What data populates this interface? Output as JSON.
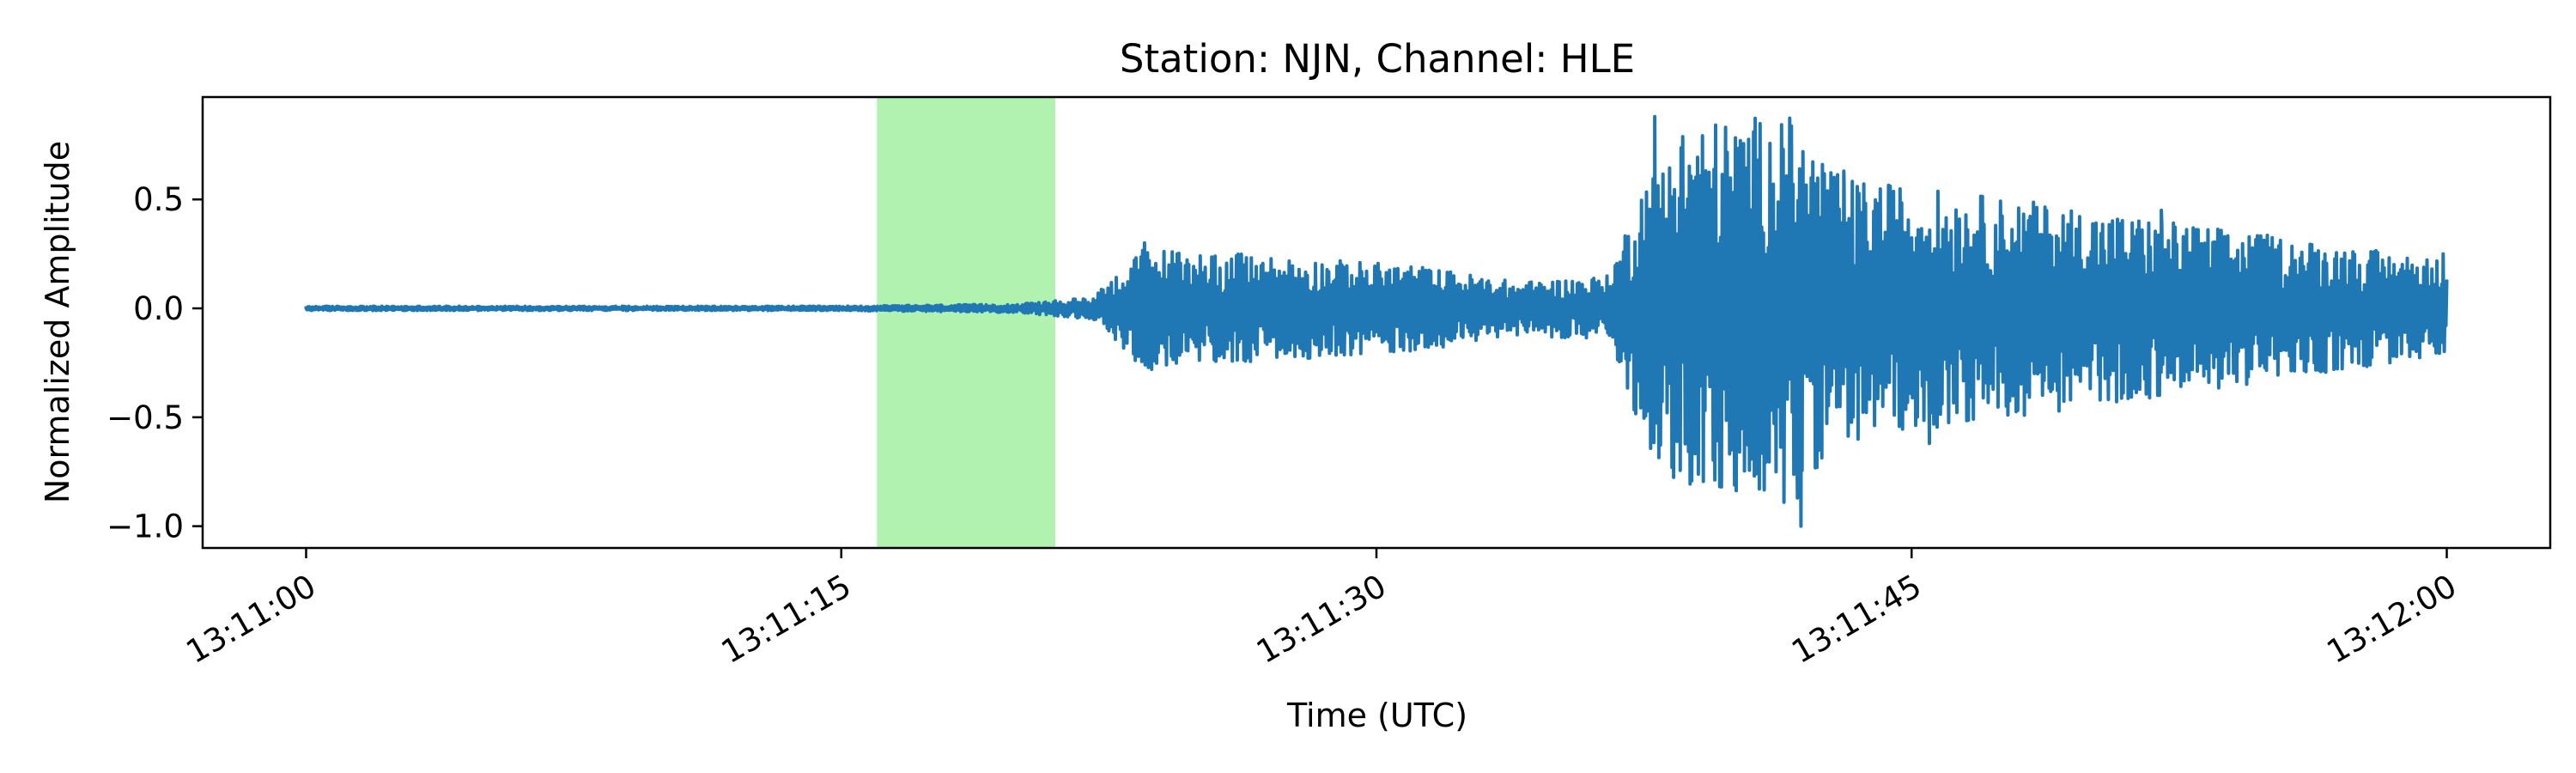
{
  "chart_data": {
    "type": "line",
    "title": "Station: NJN, Channel: HLE",
    "xlabel": "Time (UTC)",
    "ylabel": "Normalized Amplitude",
    "x_unit": "seconds after 13:11:00 UTC",
    "xlim": [
      -2.9,
      62.9
    ],
    "ylim": [
      -1.1,
      0.97
    ],
    "x_ticks": [
      {
        "value": 0,
        "label": "13:11:00"
      },
      {
        "value": 15,
        "label": "13:11:15"
      },
      {
        "value": 30,
        "label": "13:11:30"
      },
      {
        "value": 45,
        "label": "13:11:45"
      },
      {
        "value": 60,
        "label": "13:12:00"
      }
    ],
    "y_ticks": [
      {
        "value": 0.5,
        "label": "0.5"
      },
      {
        "value": 0.0,
        "label": "0.0"
      },
      {
        "value": -0.5,
        "label": "−0.5"
      },
      {
        "value": -1.0,
        "label": "−1.0"
      }
    ],
    "grid": false,
    "highlight": {
      "start": 16.0,
      "end": 21.0,
      "color": "#b2f2b1"
    },
    "series_color": "#1f77b4",
    "series": [
      {
        "envelope": [
          [
            0,
            0.01
          ],
          [
            15,
            0.01
          ],
          [
            20,
            0.02
          ],
          [
            22,
            0.05
          ],
          [
            23.5,
            0.28
          ],
          [
            27,
            0.24
          ],
          [
            31,
            0.2
          ],
          [
            34,
            0.12
          ],
          [
            36.5,
            0.15
          ],
          [
            37.5,
            0.6
          ],
          [
            38.5,
            0.85
          ],
          [
            41.5,
            0.9
          ],
          [
            43,
            0.6
          ],
          [
            48,
            0.5
          ],
          [
            60,
            0.22
          ]
        ],
        "key_points": [
          [
            0,
            0.0
          ],
          [
            16,
            0.0
          ],
          [
            21,
            0.0
          ],
          [
            23.5,
            0.3
          ],
          [
            23.7,
            -0.28
          ],
          [
            37.6,
            0.45
          ],
          [
            37.8,
            0.88
          ],
          [
            38.3,
            -0.55
          ],
          [
            41.2,
            -0.75
          ],
          [
            41.4,
            0.73
          ],
          [
            41.8,
            -0.87
          ],
          [
            41.9,
            -1.0
          ],
          [
            42.5,
            0.66
          ],
          [
            43.1,
            0.63
          ],
          [
            43.5,
            -0.6
          ],
          [
            45.5,
            -0.62
          ],
          [
            52,
            0.45
          ],
          [
            59.9,
            0.25
          ],
          [
            60,
            0.12
          ]
        ]
      }
    ]
  }
}
